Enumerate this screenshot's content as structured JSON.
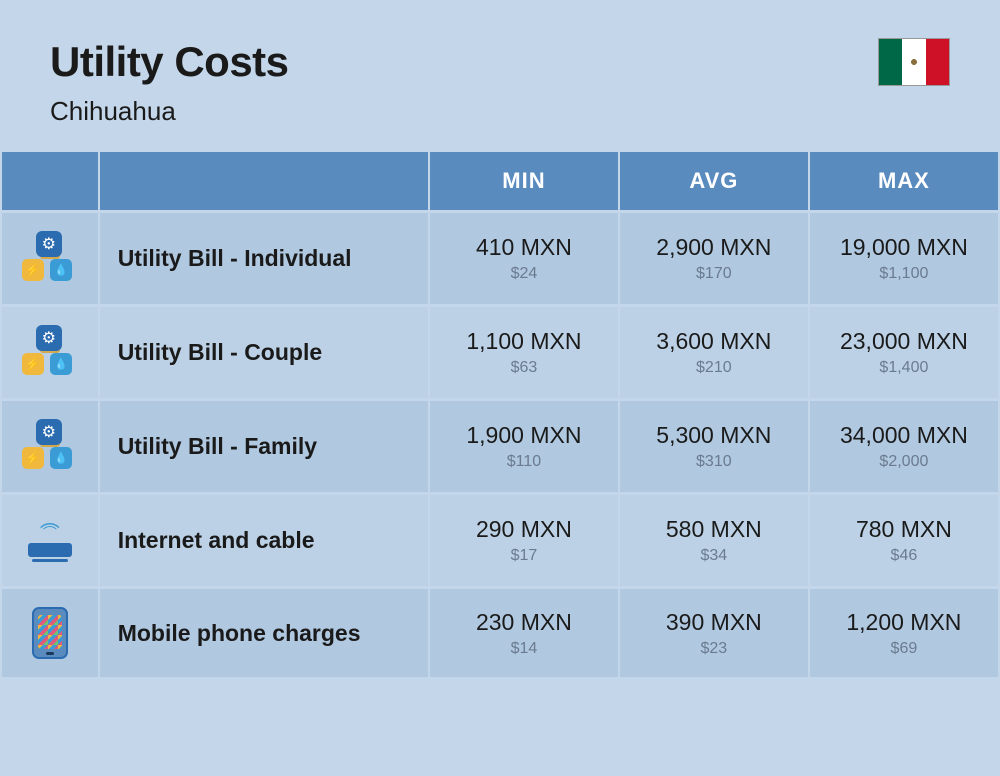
{
  "header": {
    "title": "Utility Costs",
    "subtitle": "Chihuahua"
  },
  "columns": {
    "min": "MIN",
    "avg": "AVG",
    "max": "MAX"
  },
  "rows": [
    {
      "icon": "utility",
      "label": "Utility Bill - Individual",
      "min": {
        "main": "410 MXN",
        "sub": "$24"
      },
      "avg": {
        "main": "2,900 MXN",
        "sub": "$170"
      },
      "max": {
        "main": "19,000 MXN",
        "sub": "$1,100"
      }
    },
    {
      "icon": "utility",
      "label": "Utility Bill - Couple",
      "min": {
        "main": "1,100 MXN",
        "sub": "$63"
      },
      "avg": {
        "main": "3,600 MXN",
        "sub": "$210"
      },
      "max": {
        "main": "23,000 MXN",
        "sub": "$1,400"
      }
    },
    {
      "icon": "utility",
      "label": "Utility Bill - Family",
      "min": {
        "main": "1,900 MXN",
        "sub": "$110"
      },
      "avg": {
        "main": "5,300 MXN",
        "sub": "$310"
      },
      "max": {
        "main": "34,000 MXN",
        "sub": "$2,000"
      }
    },
    {
      "icon": "router",
      "label": "Internet and cable",
      "min": {
        "main": "290 MXN",
        "sub": "$17"
      },
      "avg": {
        "main": "580 MXN",
        "sub": "$34"
      },
      "max": {
        "main": "780 MXN",
        "sub": "$46"
      }
    },
    {
      "icon": "phone",
      "label": "Mobile phone charges",
      "min": {
        "main": "230 MXN",
        "sub": "$14"
      },
      "avg": {
        "main": "390 MXN",
        "sub": "$23"
      },
      "max": {
        "main": "1,200 MXN",
        "sub": "$69"
      }
    }
  ],
  "colors": {
    "background": "#c4d7ea",
    "header_bg": "#5a8bbf",
    "row_bg": "#b0c8e0",
    "row_alt_bg": "#bcd1e5",
    "text_main": "#1a1a1a",
    "text_sub": "#6b7b8f"
  }
}
